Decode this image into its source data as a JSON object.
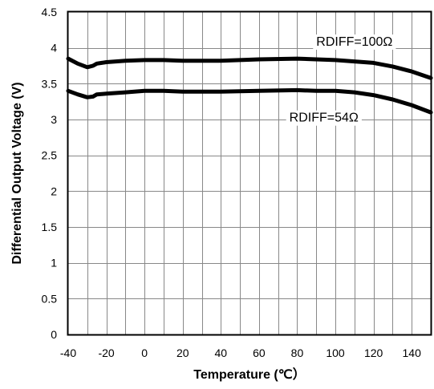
{
  "chart_data": {
    "type": "line",
    "title": "",
    "xlabel": "Temperature (℃）",
    "ylabel": "Differential Output Voltage (V)",
    "xlim": [
      -40,
      150
    ],
    "ylim": [
      0,
      4.5
    ],
    "x_ticks": [
      -40,
      -20,
      0,
      20,
      40,
      60,
      80,
      100,
      120,
      140
    ],
    "x_tick_labels": [
      "-40",
      "-20",
      "0",
      "20",
      "40",
      "60",
      "80",
      "100",
      "120",
      "140"
    ],
    "y_ticks": [
      0,
      0.5,
      1,
      1.5,
      2,
      2.5,
      3,
      3.5,
      4,
      4.5
    ],
    "y_tick_labels": [
      "0",
      "0.5",
      "1",
      "1.5",
      "2",
      "2.5",
      "3",
      "3.5",
      "4",
      "4.5"
    ],
    "x_minor_step": 10,
    "grid": true,
    "legend": "none",
    "series": [
      {
        "name": "RDIFF=100Ω",
        "color": "#000000",
        "x": [
          -40,
          -35,
          -30,
          -27,
          -25,
          -20,
          -10,
          0,
          10,
          20,
          30,
          40,
          60,
          80,
          90,
          100,
          110,
          120,
          130,
          140,
          150
        ],
        "y": [
          3.85,
          3.78,
          3.73,
          3.75,
          3.78,
          3.8,
          3.82,
          3.83,
          3.83,
          3.82,
          3.82,
          3.82,
          3.84,
          3.85,
          3.84,
          3.83,
          3.81,
          3.79,
          3.74,
          3.67,
          3.58
        ]
      },
      {
        "name": "RDIFF=54Ω",
        "color": "#000000",
        "x": [
          -40,
          -35,
          -30,
          -27,
          -25,
          -20,
          -10,
          0,
          10,
          20,
          30,
          40,
          60,
          80,
          90,
          100,
          110,
          120,
          130,
          140,
          150
        ],
        "y": [
          3.4,
          3.35,
          3.31,
          3.32,
          3.35,
          3.36,
          3.38,
          3.4,
          3.4,
          3.39,
          3.39,
          3.39,
          3.4,
          3.41,
          3.4,
          3.4,
          3.38,
          3.34,
          3.28,
          3.2,
          3.1
        ]
      }
    ],
    "annotations": [
      {
        "text": "RDIFF=100Ω",
        "series": 0,
        "x": 110,
        "y": 4.08
      },
      {
        "text": "RDIFF=54Ω",
        "series": 1,
        "x": 94,
        "y": 3.02
      }
    ]
  }
}
